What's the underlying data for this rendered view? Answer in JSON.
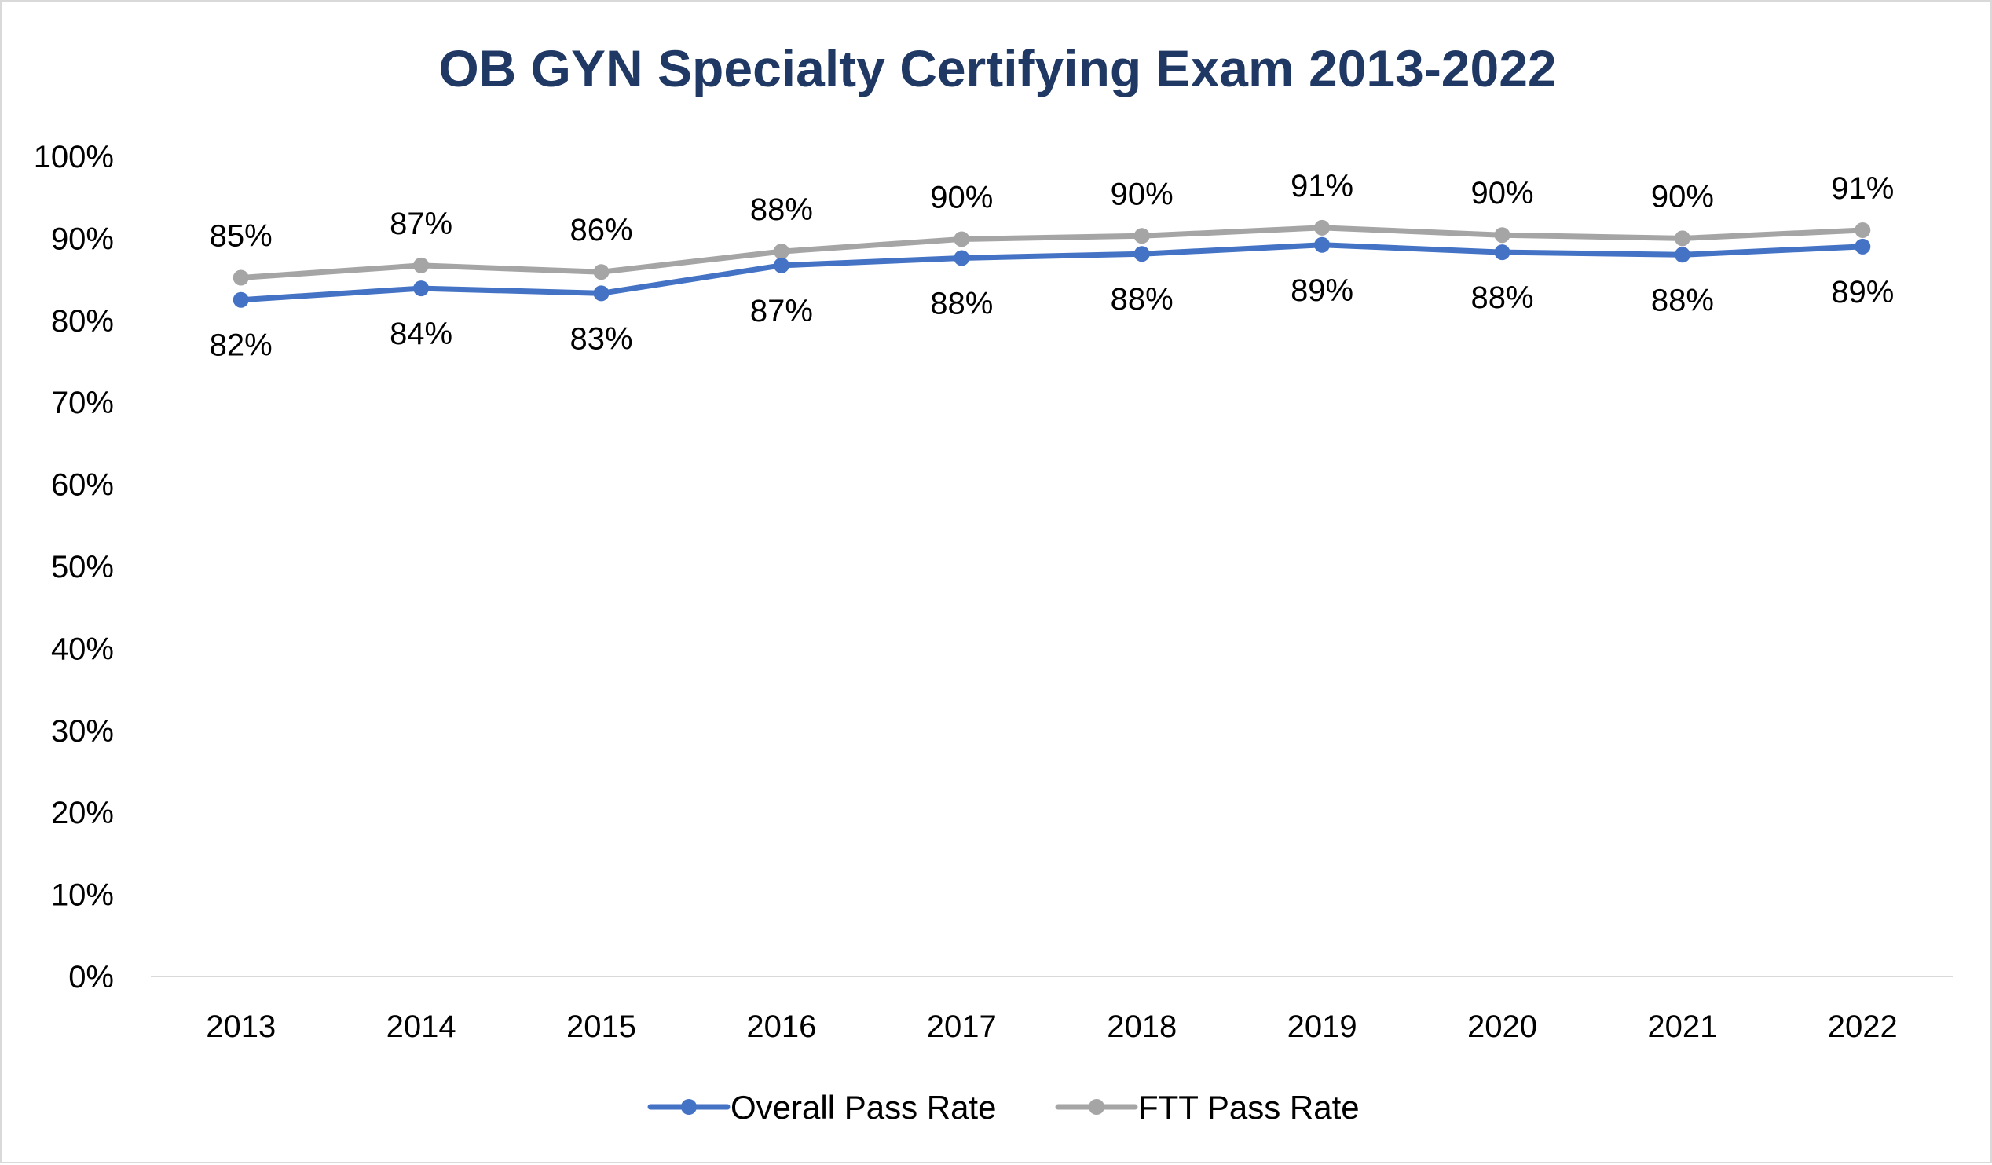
{
  "chart_data": {
    "type": "line",
    "title": "OB GYN Specialty Certifying Exam 2013-2022",
    "xlabel": "",
    "ylabel": "",
    "categories": [
      "2013",
      "2014",
      "2015",
      "2016",
      "2017",
      "2018",
      "2019",
      "2020",
      "2021",
      "2022"
    ],
    "y_ticks": [
      "0%",
      "10%",
      "20%",
      "30%",
      "40%",
      "50%",
      "60%",
      "70%",
      "80%",
      "90%",
      "100%"
    ],
    "ylim": [
      0,
      100
    ],
    "grid": false,
    "legend_position": "bottom",
    "series": [
      {
        "name": "Overall Pass Rate",
        "color": "#4472c4",
        "values": [
          82.5,
          83.9,
          83.3,
          86.7,
          87.6,
          88.1,
          89.2,
          88.3,
          88.0,
          89.0
        ],
        "labels": [
          "82%",
          "84%",
          "83%",
          "87%",
          "88%",
          "88%",
          "89%",
          "88%",
          "88%",
          "89%"
        ],
        "label_placement": "below"
      },
      {
        "name": "FTT Pass Rate",
        "color": "#a5a5a5",
        "values": [
          85.2,
          86.7,
          85.9,
          88.4,
          89.9,
          90.3,
          91.3,
          90.4,
          90.0,
          91.0
        ],
        "labels": [
          "85%",
          "87%",
          "86%",
          "88%",
          "90%",
          "90%",
          "91%",
          "90%",
          "90%",
          "91%"
        ],
        "label_placement": "above"
      }
    ]
  }
}
